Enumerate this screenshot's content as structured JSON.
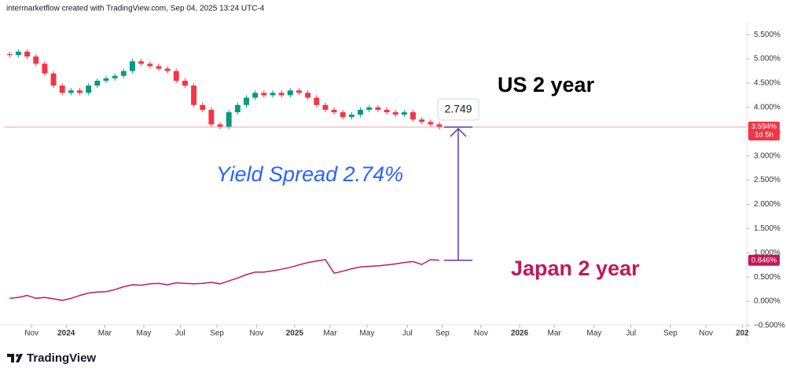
{
  "header": "intermarketflow created with TradingView.com, Sep 04, 2025 13:24 UTC-4",
  "footer": "TradingView",
  "chart_data": {
    "type": "candlestick",
    "xlim": [
      -6.3,
      163.1
    ],
    "xticks": [
      {
        "value": 0,
        "label": "Nov"
      },
      {
        "value": 7.9,
        "label": "2024"
      },
      {
        "value": 16.7,
        "label": "Mar"
      },
      {
        "value": 25.6,
        "label": "May"
      },
      {
        "value": 33.9,
        "label": "Jul"
      },
      {
        "value": 42.3,
        "label": "Sep"
      },
      {
        "value": 51.3,
        "label": "Nov"
      },
      {
        "value": 60,
        "label": "2025"
      },
      {
        "value": 68.1,
        "label": "Mar"
      },
      {
        "value": 76.5,
        "label": "May"
      },
      {
        "value": 85.7,
        "label": "Jul"
      },
      {
        "value": 93.7,
        "label": "Sep"
      },
      {
        "value": 102.5,
        "label": "Nov"
      },
      {
        "value": 111.3,
        "label": "2026"
      },
      {
        "value": 119.2,
        "label": "Mar"
      },
      {
        "value": 128.3,
        "label": "May"
      },
      {
        "value": 136.7,
        "label": "Jul"
      },
      {
        "value": 145.7,
        "label": "Sep"
      },
      {
        "value": 153.8,
        "label": "Nov"
      },
      {
        "value": 162.1,
        "label": "202"
      }
    ],
    "ylim": [
      -0.55,
      5.73
    ],
    "yticks": [
      {
        "value": -0.5,
        "label": "−0.500%"
      },
      {
        "value": 0,
        "label": "0.000%"
      },
      {
        "value": 0.5,
        "label": "0.500%"
      },
      {
        "value": 1,
        "label": "1.000%"
      },
      {
        "value": 1.5,
        "label": "1.500%"
      },
      {
        "value": 2,
        "label": "2.000%"
      },
      {
        "value": 2.5,
        "label": "2.500%"
      },
      {
        "value": 3,
        "label": "3.000%"
      },
      {
        "value": 3.5,
        "label": "3.500%"
      },
      {
        "value": 4,
        "label": "4.000%"
      },
      {
        "value": 4.5,
        "label": "4.500%"
      },
      {
        "value": 5,
        "label": "5.000%"
      },
      {
        "value": 5.5,
        "label": "5.500%"
      }
    ],
    "x": [
      -5,
      -3,
      -1,
      1,
      3,
      5,
      7,
      9,
      11,
      13,
      15,
      17,
      19,
      21,
      23,
      25,
      27,
      29,
      31,
      33,
      35,
      37,
      39,
      41,
      43,
      45,
      47,
      49,
      51,
      53,
      55,
      57,
      59,
      61,
      63,
      65,
      67,
      69,
      71,
      73,
      75,
      77,
      79,
      81,
      83,
      85,
      87,
      89,
      91,
      93
    ],
    "series": [
      {
        "name": "US 2 year",
        "type": "candlestick",
        "up_color": "#089981",
        "down_color": "#f23645",
        "open": [
          5.1,
          5.08,
          5.15,
          5.05,
          4.9,
          4.7,
          4.45,
          4.3,
          4.35,
          4.3,
          4.45,
          4.55,
          4.6,
          4.65,
          4.75,
          4.95,
          4.9,
          4.85,
          4.8,
          4.75,
          4.55,
          4.45,
          4.05,
          3.95,
          3.65,
          3.6,
          3.9,
          4.05,
          4.2,
          4.3,
          4.25,
          4.3,
          4.25,
          4.35,
          4.3,
          4.2,
          4.05,
          3.95,
          3.9,
          3.8,
          3.85,
          3.95,
          4.0,
          3.95,
          3.9,
          3.85,
          3.9,
          3.75,
          3.7,
          3.65
        ],
        "high": [
          5.15,
          5.2,
          5.2,
          5.1,
          4.95,
          4.75,
          4.5,
          4.4,
          4.4,
          4.5,
          4.6,
          4.65,
          4.7,
          4.8,
          5.0,
          5.0,
          4.95,
          4.9,
          4.85,
          4.8,
          4.6,
          4.5,
          4.1,
          4.0,
          3.7,
          3.95,
          4.1,
          4.25,
          4.35,
          4.35,
          4.35,
          4.35,
          4.4,
          4.4,
          4.35,
          4.25,
          4.1,
          4.0,
          3.95,
          3.9,
          4.0,
          4.05,
          4.05,
          4.0,
          3.95,
          3.95,
          3.95,
          3.8,
          3.75,
          3.7
        ],
        "low": [
          5.03,
          5.03,
          5.0,
          4.85,
          4.65,
          4.4,
          4.25,
          4.25,
          4.25,
          4.25,
          4.4,
          4.5,
          4.55,
          4.6,
          4.7,
          4.85,
          4.8,
          4.75,
          4.7,
          4.5,
          4.4,
          4.0,
          3.9,
          3.6,
          3.55,
          3.55,
          3.85,
          4.0,
          4.15,
          4.2,
          4.2,
          4.2,
          4.2,
          4.25,
          4.15,
          4.0,
          3.9,
          3.85,
          3.75,
          3.75,
          3.8,
          3.9,
          3.9,
          3.85,
          3.8,
          3.8,
          3.7,
          3.65,
          3.6,
          3.544
        ],
        "close": [
          5.08,
          5.15,
          5.05,
          4.9,
          4.7,
          4.45,
          4.3,
          4.35,
          4.3,
          4.45,
          4.55,
          4.6,
          4.65,
          4.75,
          4.95,
          4.9,
          4.85,
          4.8,
          4.75,
          4.55,
          4.45,
          4.05,
          3.95,
          3.65,
          3.6,
          3.9,
          4.05,
          4.2,
          4.3,
          4.25,
          4.3,
          4.25,
          4.35,
          4.3,
          4.2,
          4.05,
          3.95,
          3.9,
          3.8,
          3.85,
          3.95,
          4.0,
          3.95,
          3.9,
          3.85,
          3.9,
          3.75,
          3.7,
          3.65,
          3.594
        ],
        "last_label": {
          "value": 3.594,
          "label": "3.594%"
        },
        "countdown": "1d 5h",
        "tag_color": "#f23645"
      },
      {
        "name": "Japan 2 year",
        "type": "line",
        "color": "#c2185b",
        "values": [
          0.06,
          0.08,
          0.12,
          0.06,
          0.08,
          0.05,
          0.02,
          0.06,
          0.12,
          0.17,
          0.19,
          0.2,
          0.24,
          0.3,
          0.34,
          0.33,
          0.36,
          0.37,
          0.34,
          0.38,
          0.37,
          0.36,
          0.37,
          0.39,
          0.36,
          0.42,
          0.48,
          0.55,
          0.6,
          0.6,
          0.63,
          0.66,
          0.7,
          0.75,
          0.8,
          0.83,
          0.86,
          0.58,
          0.62,
          0.67,
          0.71,
          0.72,
          0.73,
          0.75,
          0.77,
          0.8,
          0.82,
          0.76,
          0.86,
          0.846
        ],
        "last_label": {
          "value": 0.846,
          "label": "0.846%"
        },
        "tag_color": "#c2185b"
      }
    ],
    "annotations": {
      "spread": "Yield Spread 2.74%",
      "spread_color": "#2962ff",
      "measure": "2.749",
      "arrow_color": "#5e35b1"
    }
  }
}
